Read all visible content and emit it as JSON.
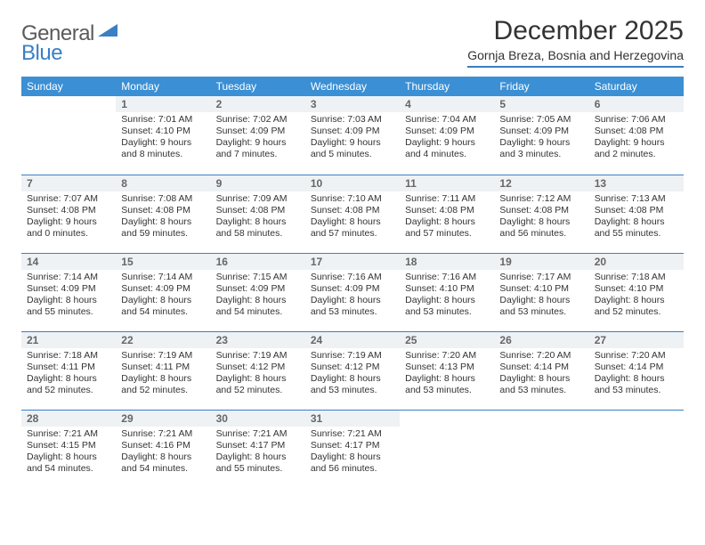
{
  "brand": {
    "part1": "General",
    "part2": "Blue"
  },
  "title": "December 2025",
  "subtitle": "Gornja Breza, Bosnia and Herzegovina",
  "colors": {
    "header_bg": "#3b8fd4",
    "header_text": "#ffffff",
    "divider": "#3b7fc4",
    "daynum_bg": "#eef2f5",
    "daynum_text": "#666666",
    "body_text": "#333333",
    "brand_gray": "#5a5a5a",
    "brand_blue": "#3b7fc4"
  },
  "weekdays": [
    "Sunday",
    "Monday",
    "Tuesday",
    "Wednesday",
    "Thursday",
    "Friday",
    "Saturday"
  ],
  "first_weekday_index": 1,
  "days": [
    {
      "n": 1,
      "sunrise": "7:01 AM",
      "sunset": "4:10 PM",
      "daylight": "9 hours and 8 minutes."
    },
    {
      "n": 2,
      "sunrise": "7:02 AM",
      "sunset": "4:09 PM",
      "daylight": "9 hours and 7 minutes."
    },
    {
      "n": 3,
      "sunrise": "7:03 AM",
      "sunset": "4:09 PM",
      "daylight": "9 hours and 5 minutes."
    },
    {
      "n": 4,
      "sunrise": "7:04 AM",
      "sunset": "4:09 PM",
      "daylight": "9 hours and 4 minutes."
    },
    {
      "n": 5,
      "sunrise": "7:05 AM",
      "sunset": "4:09 PM",
      "daylight": "9 hours and 3 minutes."
    },
    {
      "n": 6,
      "sunrise": "7:06 AM",
      "sunset": "4:08 PM",
      "daylight": "9 hours and 2 minutes."
    },
    {
      "n": 7,
      "sunrise": "7:07 AM",
      "sunset": "4:08 PM",
      "daylight": "9 hours and 0 minutes."
    },
    {
      "n": 8,
      "sunrise": "7:08 AM",
      "sunset": "4:08 PM",
      "daylight": "8 hours and 59 minutes."
    },
    {
      "n": 9,
      "sunrise": "7:09 AM",
      "sunset": "4:08 PM",
      "daylight": "8 hours and 58 minutes."
    },
    {
      "n": 10,
      "sunrise": "7:10 AM",
      "sunset": "4:08 PM",
      "daylight": "8 hours and 57 minutes."
    },
    {
      "n": 11,
      "sunrise": "7:11 AM",
      "sunset": "4:08 PM",
      "daylight": "8 hours and 57 minutes."
    },
    {
      "n": 12,
      "sunrise": "7:12 AM",
      "sunset": "4:08 PM",
      "daylight": "8 hours and 56 minutes."
    },
    {
      "n": 13,
      "sunrise": "7:13 AM",
      "sunset": "4:08 PM",
      "daylight": "8 hours and 55 minutes."
    },
    {
      "n": 14,
      "sunrise": "7:14 AM",
      "sunset": "4:09 PM",
      "daylight": "8 hours and 55 minutes."
    },
    {
      "n": 15,
      "sunrise": "7:14 AM",
      "sunset": "4:09 PM",
      "daylight": "8 hours and 54 minutes."
    },
    {
      "n": 16,
      "sunrise": "7:15 AM",
      "sunset": "4:09 PM",
      "daylight": "8 hours and 54 minutes."
    },
    {
      "n": 17,
      "sunrise": "7:16 AM",
      "sunset": "4:09 PM",
      "daylight": "8 hours and 53 minutes."
    },
    {
      "n": 18,
      "sunrise": "7:16 AM",
      "sunset": "4:10 PM",
      "daylight": "8 hours and 53 minutes."
    },
    {
      "n": 19,
      "sunrise": "7:17 AM",
      "sunset": "4:10 PM",
      "daylight": "8 hours and 53 minutes."
    },
    {
      "n": 20,
      "sunrise": "7:18 AM",
      "sunset": "4:10 PM",
      "daylight": "8 hours and 52 minutes."
    },
    {
      "n": 21,
      "sunrise": "7:18 AM",
      "sunset": "4:11 PM",
      "daylight": "8 hours and 52 minutes."
    },
    {
      "n": 22,
      "sunrise": "7:19 AM",
      "sunset": "4:11 PM",
      "daylight": "8 hours and 52 minutes."
    },
    {
      "n": 23,
      "sunrise": "7:19 AM",
      "sunset": "4:12 PM",
      "daylight": "8 hours and 52 minutes."
    },
    {
      "n": 24,
      "sunrise": "7:19 AM",
      "sunset": "4:12 PM",
      "daylight": "8 hours and 53 minutes."
    },
    {
      "n": 25,
      "sunrise": "7:20 AM",
      "sunset": "4:13 PM",
      "daylight": "8 hours and 53 minutes."
    },
    {
      "n": 26,
      "sunrise": "7:20 AM",
      "sunset": "4:14 PM",
      "daylight": "8 hours and 53 minutes."
    },
    {
      "n": 27,
      "sunrise": "7:20 AM",
      "sunset": "4:14 PM",
      "daylight": "8 hours and 53 minutes."
    },
    {
      "n": 28,
      "sunrise": "7:21 AM",
      "sunset": "4:15 PM",
      "daylight": "8 hours and 54 minutes."
    },
    {
      "n": 29,
      "sunrise": "7:21 AM",
      "sunset": "4:16 PM",
      "daylight": "8 hours and 54 minutes."
    },
    {
      "n": 30,
      "sunrise": "7:21 AM",
      "sunset": "4:17 PM",
      "daylight": "8 hours and 55 minutes."
    },
    {
      "n": 31,
      "sunrise": "7:21 AM",
      "sunset": "4:17 PM",
      "daylight": "8 hours and 56 minutes."
    }
  ],
  "labels": {
    "sunrise": "Sunrise:",
    "sunset": "Sunset:",
    "daylight": "Daylight:"
  }
}
